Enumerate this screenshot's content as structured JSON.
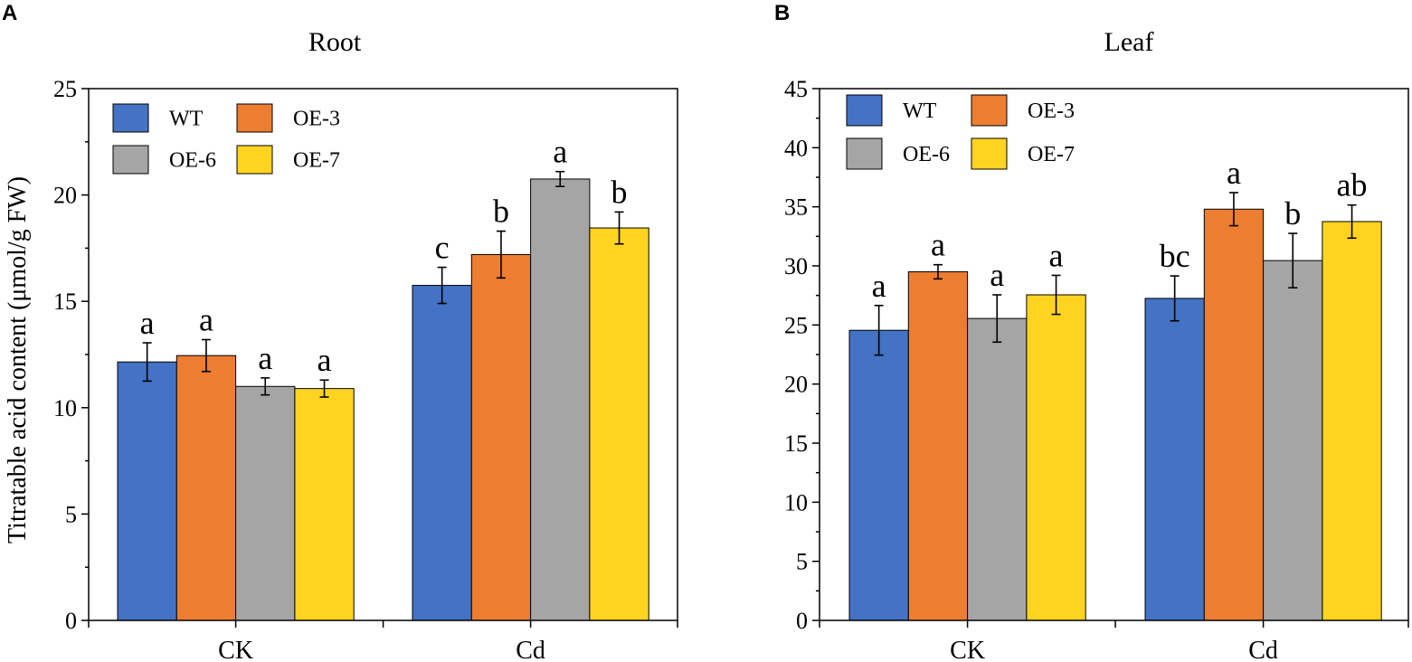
{
  "chart_data": [
    {
      "type": "bar",
      "panel_letter": "A",
      "title": "Root",
      "xlabel": "",
      "ylabel": "Titratable acid content (μmol/g FW)",
      "categories": [
        "CK",
        "Cd"
      ],
      "ylim": [
        0,
        25
      ],
      "yticks": [
        0,
        5,
        10,
        15,
        20,
        25
      ],
      "legend_position": "top-left",
      "series": [
        {
          "name": "WT",
          "color": "#4472C4",
          "values": [
            12.15,
            15.75
          ],
          "errors": [
            0.9,
            0.85
          ],
          "labels": [
            "a",
            "c"
          ]
        },
        {
          "name": "OE-3",
          "color": "#ED7D31",
          "values": [
            12.45,
            17.2
          ],
          "errors": [
            0.75,
            1.1
          ],
          "labels": [
            "a",
            "b"
          ]
        },
        {
          "name": "OE-6",
          "color": "#A5A5A5",
          "values": [
            11.0,
            20.75
          ],
          "errors": [
            0.4,
            0.35
          ],
          "labels": [
            "a",
            "a"
          ]
        },
        {
          "name": "OE-7",
          "color": "#FFD420",
          "values": [
            10.9,
            18.45
          ],
          "errors": [
            0.4,
            0.75
          ],
          "labels": [
            "a",
            "b"
          ]
        }
      ]
    },
    {
      "type": "bar",
      "panel_letter": "B",
      "title": "Leaf",
      "xlabel": "",
      "ylabel": "",
      "categories": [
        "CK",
        "Cd"
      ],
      "ylim": [
        0,
        45
      ],
      "yticks": [
        0,
        5,
        10,
        15,
        20,
        25,
        30,
        35,
        40,
        45
      ],
      "legend_position": "top-left",
      "series": [
        {
          "name": "WT",
          "color": "#4472C4",
          "values": [
            24.55,
            27.25
          ],
          "errors": [
            2.1,
            1.9
          ],
          "labels": [
            "a",
            "bc"
          ]
        },
        {
          "name": "OE-3",
          "color": "#ED7D31",
          "values": [
            29.5,
            34.8
          ],
          "errors": [
            0.6,
            1.4
          ],
          "labels": [
            "a",
            "a"
          ]
        },
        {
          "name": "OE-6",
          "color": "#A5A5A5",
          "values": [
            25.55,
            30.45
          ],
          "errors": [
            2.0,
            2.3
          ],
          "labels": [
            "a",
            "b"
          ]
        },
        {
          "name": "OE-7",
          "color": "#FFD420",
          "values": [
            27.55,
            33.75
          ],
          "errors": [
            1.65,
            1.4
          ],
          "labels": [
            "a",
            "ab"
          ]
        }
      ]
    }
  ]
}
